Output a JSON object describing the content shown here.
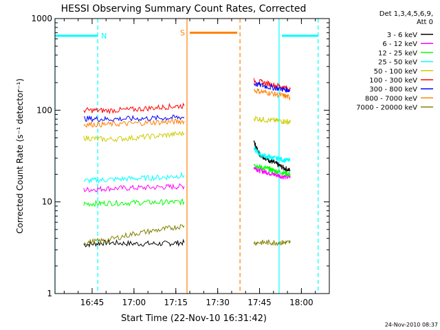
{
  "chart_data": {
    "type": "line",
    "title": "HESSI Observing Summary Count Rates, Corrected",
    "xlabel": "Start Time (22-Nov-10 16:31:42)",
    "ylabel": "Corrected Count Rate (s⁻¹ detector⁻¹)",
    "y_scale": "log",
    "xlim": [
      "16:31:42",
      "18:10:00"
    ],
    "ylim": [
      1,
      1000
    ],
    "x_tick_labels": [
      "16:45",
      "17:00",
      "17:15",
      "17:30",
      "17:45",
      "18:00"
    ],
    "y_tick_labels": [
      "1",
      "10",
      "100",
      "1000"
    ],
    "legend_header": [
      "Det 1,3,4,5,6,9,",
      "Att 0"
    ],
    "legend_position": "right, outside plot",
    "timestamp": "24-Nov-2010 08:37",
    "grid": false,
    "series": [
      {
        "name": "3 - 6 keV",
        "color": "#000000",
        "segments": [
          {
            "x": [
              "16:42",
              "16:50",
              "17:00",
              "17:10",
              "17:18"
            ],
            "y": [
              3.4,
              3.6,
              3.5,
              3.5,
              3.6
            ]
          },
          {
            "x": [
              "17:43",
              "17:45",
              "17:48",
              "17:50",
              "17:53",
              "17:56"
            ],
            "y": [
              45,
              33,
              29,
              27,
              24,
              22
            ]
          }
        ]
      },
      {
        "name": "6 - 12 keV",
        "color": "#ff00ff",
        "segments": [
          {
            "x": [
              "16:42",
              "16:50",
              "17:00",
              "17:10",
              "17:18"
            ],
            "y": [
              13.5,
              14,
              14.2,
              14.5,
              14.8
            ]
          },
          {
            "x": [
              "17:43",
              "17:45",
              "17:48",
              "17:50",
              "17:53",
              "17:56"
            ],
            "y": [
              24,
              22,
              21,
              20,
              19,
              18.5
            ]
          }
        ]
      },
      {
        "name": "12 - 25 keV",
        "color": "#00ff00",
        "segments": [
          {
            "x": [
              "16:42",
              "16:50",
              "17:00",
              "17:10",
              "17:18"
            ],
            "y": [
              9.5,
              9.7,
              9.8,
              9.9,
              10
            ]
          },
          {
            "x": [
              "17:43",
              "17:45",
              "17:48",
              "17:50",
              "17:53",
              "17:56"
            ],
            "y": [
              26,
              24,
              23,
              22,
              21,
              20
            ]
          }
        ]
      },
      {
        "name": "25 - 50 keV",
        "color": "#00ffff",
        "segments": [
          {
            "x": [
              "16:42",
              "16:50",
              "17:00",
              "17:10",
              "17:18"
            ],
            "y": [
              17,
              17.5,
              18,
              18.5,
              19.5
            ]
          },
          {
            "x": [
              "17:43",
              "17:45",
              "17:48",
              "17:50",
              "17:53",
              "17:56"
            ],
            "y": [
              38,
              33,
              31,
              30,
              29,
              28
            ]
          }
        ]
      },
      {
        "name": "50 - 100 keV",
        "color": "#cccc00",
        "segments": [
          {
            "x": [
              "16:42",
              "16:50",
              "17:00",
              "17:10",
              "17:18"
            ],
            "y": [
              50,
              48,
              50,
              53,
              56
            ]
          },
          {
            "x": [
              "17:43",
              "17:48",
              "17:53",
              "17:56"
            ],
            "y": [
              82,
              78,
              76,
              74
            ]
          }
        ]
      },
      {
        "name": "100 - 300 keV",
        "color": "#ff0000",
        "segments": [
          {
            "x": [
              "16:42",
              "16:50",
              "17:00",
              "17:10",
              "17:18"
            ],
            "y": [
              100,
              99,
              102,
              108,
              112
            ]
          },
          {
            "x": [
              "17:43",
              "17:48",
              "17:53",
              "17:56"
            ],
            "y": [
              210,
              195,
              180,
              170
            ]
          }
        ]
      },
      {
        "name": "300 - 800 keV",
        "color": "#0000ff",
        "segments": [
          {
            "x": [
              "16:42",
              "16:50",
              "17:00",
              "17:10",
              "17:18"
            ],
            "y": [
              81,
              80,
              81,
              82,
              84
            ]
          },
          {
            "x": [
              "17:43",
              "17:48",
              "17:53",
              "17:56"
            ],
            "y": [
              195,
              180,
              170,
              165
            ]
          }
        ]
      },
      {
        "name": "800 - 7000 keV",
        "color": "#ff8000",
        "segments": [
          {
            "x": [
              "16:42",
              "16:50",
              "17:00",
              "17:10",
              "17:18"
            ],
            "y": [
              70,
              70,
              72,
              74,
              76
            ]
          },
          {
            "x": [
              "17:43",
              "17:48",
              "17:53",
              "17:56"
            ],
            "y": [
              165,
              155,
              145,
              138
            ]
          }
        ]
      },
      {
        "name": "7000 - 20000 keV",
        "color": "#808000",
        "segments": [
          {
            "x": [
              "16:42",
              "16:50",
              "17:00",
              "17:10",
              "17:18"
            ],
            "y": [
              3.6,
              3.8,
              4.5,
              5,
              5.5
            ]
          },
          {
            "x": [
              "17:43",
              "17:48",
              "17:53",
              "17:56"
            ],
            "y": [
              3.6,
              3.6,
              3.6,
              3.6
            ]
          }
        ]
      }
    ],
    "annotations": [
      {
        "label": "N",
        "color": "#00ffff",
        "x_start": "16:31:42",
        "x_end": "16:47",
        "y": 650
      },
      {
        "label": "S",
        "color": "#ff8000",
        "x_start": "17:20",
        "x_end": "17:37",
        "y": 700
      },
      {
        "label": "",
        "color": "#00ffff",
        "x_start": "17:53",
        "x_end": "18:06",
        "y": 650
      }
    ],
    "vertical_markers": [
      {
        "x": "16:31:42",
        "color": "#00ffff",
        "style": "solid"
      },
      {
        "x": "16:47",
        "color": "#00ffff",
        "style": "dashed"
      },
      {
        "x": "17:19",
        "color": "#ff8000",
        "style": "solid"
      },
      {
        "x": "17:38",
        "color": "#ff8000",
        "style": "dashed"
      },
      {
        "x": "17:52",
        "color": "#00ffff",
        "style": "solid"
      },
      {
        "x": "18:06",
        "color": "#00ffff",
        "style": "dashed"
      }
    ]
  }
}
